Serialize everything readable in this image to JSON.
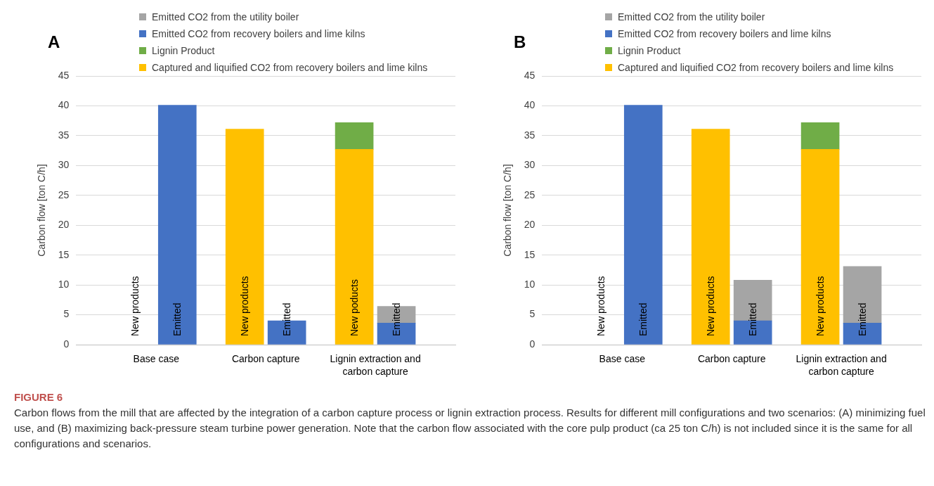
{
  "chart_data": [
    {
      "type": "bar",
      "title": "A",
      "stacked": true,
      "ylabel": "Carbon flow [ton C/h]",
      "categories": [
        "New products",
        "Emitted",
        "New products",
        "Emitted",
        "New poducts",
        "Emitted"
      ],
      "ylim": [
        0,
        45
      ],
      "yticks": [
        0,
        5,
        10,
        15,
        20,
        25,
        30,
        35,
        40,
        45
      ],
      "grid": "y",
      "legend": "top",
      "series": [
        {
          "name": "Captured and liquified CO2 from recovery boilers and lime kilns",
          "color": "#ffc000",
          "values": [
            null,
            null,
            36.1,
            null,
            32.7,
            null
          ]
        },
        {
          "name": "Lignin Product",
          "color": "#70ad47",
          "values": [
            null,
            null,
            null,
            null,
            4.5,
            null
          ]
        },
        {
          "name": "Emitted CO2 from recovery boilers and lime kilns",
          "color": "#4472c4",
          "values": [
            null,
            40.1,
            null,
            4.0,
            null,
            3.6
          ]
        },
        {
          "name": "Emitted CO2 from the utility boiler",
          "color": "#a5a5a5",
          "values": [
            null,
            null,
            null,
            null,
            null,
            2.8
          ]
        }
      ],
      "annotations": [
        "Base case",
        "Carbon capture",
        "Lignin extraction and carbon capture",
        "FIGURE 6",
        "Carbon flows from the mill that are affected by the integration of a carbon capture process or lignin extraction process. Results for different mill configurations and two scenarios: (A) minimizing fuel use, and (B) maximizing back-pressure steam turbine power generation. Note that the carbon flow associated with the core pulp product (ca 25 ton C/h) is not included since it is the same for all configurations and scenarios."
      ]
    },
    {
      "type": "bar",
      "title": "B",
      "stacked": true,
      "ylabel": "Carbon flow [ton C/h]",
      "categories": [
        "New products",
        "Emitted",
        "New products",
        "Emitted",
        "New products",
        "Emitted"
      ],
      "ylim": [
        0,
        45
      ],
      "yticks": [
        0,
        5,
        10,
        15,
        20,
        25,
        30,
        35,
        40,
        45
      ],
      "grid": "y",
      "legend": "top",
      "series": [
        {
          "name": "Captured and liquified CO2 from recovery boilers and lime kilns",
          "color": "#ffc000",
          "values": [
            null,
            null,
            36.1,
            null,
            32.7,
            null
          ]
        },
        {
          "name": "Lignin Product",
          "color": "#70ad47",
          "values": [
            null,
            null,
            null,
            null,
            4.5,
            null
          ]
        },
        {
          "name": "Emitted CO2 from recovery boilers and lime kilns",
          "color": "#4472c4",
          "values": [
            null,
            40.1,
            null,
            4.0,
            null,
            3.6
          ]
        },
        {
          "name": "Emitted CO2 from the utility boiler",
          "color": "#a5a5a5",
          "values": [
            null,
            null,
            null,
            6.8,
            null,
            9.5
          ]
        }
      ],
      "annotations": [
        "Base case",
        "Carbon capture",
        "Lignin extraction and carbon capture"
      ]
    }
  ]
}
